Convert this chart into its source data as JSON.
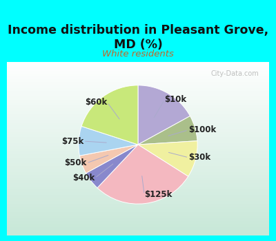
{
  "title": "Income distribution in Pleasant Grove,\nMD (%)",
  "subtitle": "White residents",
  "slices": [
    {
      "label": "$10k",
      "value": 17,
      "color": "#b3a8d4"
    },
    {
      "label": "$100k",
      "value": 7,
      "color": "#aabf8a"
    },
    {
      "label": "$30k",
      "value": 10,
      "color": "#f0f0a0"
    },
    {
      "label": "$125k",
      "value": 28,
      "color": "#f4b8c0"
    },
    {
      "label": "$40k",
      "value": 5,
      "color": "#8888cc"
    },
    {
      "label": "$50k",
      "value": 5,
      "color": "#f4c8b0"
    },
    {
      "label": "$75k",
      "value": 8,
      "color": "#aad4f0"
    },
    {
      "label": "$60k",
      "value": 20,
      "color": "#c8e87a"
    }
  ],
  "bg_color": "#00ffff",
  "chart_bg_topleft": "#c8e8d8",
  "chart_bg_bottomright": "#f0faf4",
  "title_color": "#111111",
  "subtitle_color": "#c06828",
  "label_color": "#222222",
  "label_fontsize": 8.5,
  "title_fontsize": 12.5,
  "subtitle_fontsize": 9.5,
  "watermark_text": "City-Data.com",
  "watermark_color": "#aaaaaa"
}
